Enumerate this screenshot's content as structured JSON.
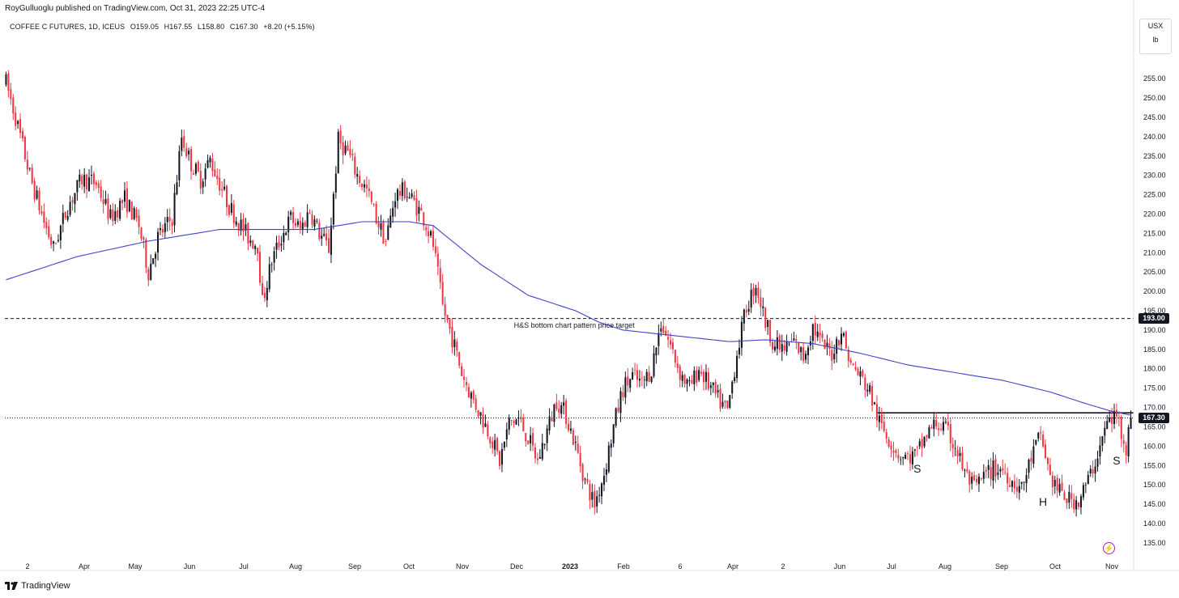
{
  "header": {
    "publisher": "RoyGulluoglu published on TradingView.com, Oct 31, 2023 22:25 UTC-4"
  },
  "legend": {
    "symbol": "COFFEE C FUTURES, 1D, ICEUS",
    "open": "O159.05",
    "high": "H167.55",
    "low": "L158.80",
    "close": "C167.30",
    "change": "+8.20 (+5.15%)"
  },
  "units": {
    "currency": "USX",
    "per": "lb"
  },
  "footer": {
    "brand": "TradingView"
  },
  "colors": {
    "up": "#131722",
    "down": "#f23645",
    "ma": "#3f44c9",
    "label_bg": "#131722"
  },
  "chart_data": {
    "type": "candlestick",
    "title": "COFFEE C FUTURES, 1D, ICEUS",
    "ylim": [
      131,
      259
    ],
    "y_ticks": [
      "255.00",
      "250.00",
      "245.00",
      "240.00",
      "235.00",
      "230.00",
      "225.00",
      "220.00",
      "215.00",
      "210.00",
      "205.00",
      "200.00",
      "195.00",
      "190.00",
      "185.00",
      "180.00",
      "175.00",
      "170.00",
      "165.00",
      "160.00",
      "155.00",
      "150.00",
      "145.00",
      "140.00",
      "135.00"
    ],
    "x_ticks": [
      "2",
      "Apr",
      "May",
      "Jun",
      "Jul",
      "Aug",
      "Sep",
      "Oct",
      "Nov",
      "Dec",
      "2023",
      "Feb",
      "6",
      "Apr",
      "2",
      "Jun",
      "Jul",
      "Aug",
      "Sep",
      "Oct",
      "Nov"
    ],
    "price_path": [
      [
        0,
        254
      ],
      [
        4,
        245
      ],
      [
        10,
        230
      ],
      [
        16,
        218
      ],
      [
        20,
        211
      ],
      [
        26,
        222
      ],
      [
        32,
        229
      ],
      [
        38,
        228
      ],
      [
        44,
        219
      ],
      [
        50,
        224
      ],
      [
        56,
        217
      ],
      [
        60,
        205
      ],
      [
        64,
        214
      ],
      [
        70,
        219
      ],
      [
        74,
        240
      ],
      [
        78,
        233
      ],
      [
        82,
        229
      ],
      [
        86,
        234
      ],
      [
        90,
        228
      ],
      [
        94,
        222
      ],
      [
        98,
        218
      ],
      [
        102,
        214
      ],
      [
        106,
        212
      ],
      [
        108,
        197
      ],
      [
        112,
        208
      ],
      [
        116,
        214
      ],
      [
        120,
        219
      ],
      [
        124,
        216
      ],
      [
        128,
        221
      ],
      [
        132,
        215
      ],
      [
        136,
        211
      ],
      [
        140,
        239
      ],
      [
        144,
        236
      ],
      [
        148,
        230
      ],
      [
        152,
        226
      ],
      [
        156,
        219
      ],
      [
        160,
        213
      ],
      [
        164,
        225
      ],
      [
        168,
        226
      ],
      [
        172,
        223
      ],
      [
        176,
        219
      ],
      [
        180,
        212
      ],
      [
        184,
        196
      ],
      [
        188,
        188
      ],
      [
        192,
        179
      ],
      [
        196,
        173
      ],
      [
        200,
        168
      ],
      [
        204,
        163
      ],
      [
        208,
        156
      ],
      [
        212,
        166
      ],
      [
        216,
        167
      ],
      [
        220,
        162
      ],
      [
        224,
        156
      ],
      [
        228,
        164
      ],
      [
        232,
        172
      ],
      [
        236,
        168
      ],
      [
        240,
        160
      ],
      [
        244,
        151
      ],
      [
        248,
        145
      ],
      [
        252,
        153
      ],
      [
        256,
        165
      ],
      [
        260,
        175
      ],
      [
        264,
        178
      ],
      [
        268,
        176
      ],
      [
        272,
        180
      ],
      [
        276,
        192
      ],
      [
        280,
        186
      ],
      [
        284,
        179
      ],
      [
        288,
        175
      ],
      [
        292,
        180
      ],
      [
        296,
        176
      ],
      [
        300,
        172
      ],
      [
        304,
        169
      ],
      [
        308,
        184
      ],
      [
        312,
        196
      ],
      [
        316,
        202
      ],
      [
        320,
        192
      ],
      [
        324,
        186
      ],
      [
        328,
        185
      ],
      [
        332,
        187
      ],
      [
        336,
        183
      ],
      [
        340,
        191
      ],
      [
        344,
        186
      ],
      [
        348,
        184
      ],
      [
        352,
        190
      ],
      [
        356,
        181
      ],
      [
        360,
        178
      ],
      [
        364,
        174
      ],
      [
        368,
        166
      ],
      [
        372,
        162
      ],
      [
        376,
        158
      ],
      [
        380,
        157
      ],
      [
        384,
        158
      ],
      [
        388,
        163
      ],
      [
        392,
        166
      ],
      [
        396,
        164
      ],
      [
        400,
        160
      ],
      [
        404,
        153
      ],
      [
        408,
        149
      ],
      [
        412,
        152
      ],
      [
        416,
        154
      ],
      [
        420,
        154
      ],
      [
        424,
        151
      ],
      [
        428,
        149
      ],
      [
        432,
        157
      ],
      [
        436,
        163
      ],
      [
        440,
        152
      ],
      [
        444,
        148
      ],
      [
        448,
        146
      ],
      [
        452,
        146
      ],
      [
        456,
        151
      ],
      [
        460,
        158
      ],
      [
        464,
        166
      ],
      [
        468,
        168
      ],
      [
        472,
        160
      ],
      [
        474,
        167.3
      ]
    ],
    "series": [
      {
        "name": "",
        "kind": "moving_average",
        "points": [
          [
            0,
            203
          ],
          [
            30,
            209
          ],
          [
            60,
            213
          ],
          [
            90,
            216
          ],
          [
            110,
            216
          ],
          [
            130,
            216
          ],
          [
            150,
            218
          ],
          [
            170,
            218
          ],
          [
            180,
            217
          ],
          [
            200,
            207
          ],
          [
            220,
            199
          ],
          [
            240,
            195
          ],
          [
            250,
            192
          ],
          [
            260,
            190
          ],
          [
            275,
            189
          ],
          [
            290,
            188
          ],
          [
            305,
            187
          ],
          [
            320,
            187.5
          ],
          [
            340,
            186.5
          ],
          [
            360,
            184
          ],
          [
            380,
            181
          ],
          [
            400,
            179
          ],
          [
            420,
            177
          ],
          [
            440,
            174
          ],
          [
            455,
            171
          ],
          [
            466,
            169
          ],
          [
            474,
            168
          ]
        ]
      }
    ],
    "levels": [
      {
        "price": 193.0,
        "style": "dashed",
        "label": "193.00"
      },
      {
        "price": 167.3,
        "style": "dotted",
        "label": "167.30"
      },
      {
        "price": 168.6,
        "style": "solid",
        "from_bar": 367,
        "to_bar": 474,
        "label": ""
      }
    ],
    "annotations": [
      {
        "text": "H&S bottom chart pattern price target",
        "bar": 214,
        "price": 191.2
      },
      {
        "text": "S",
        "bar": 384,
        "price": 154.2
      },
      {
        "text": "H",
        "bar": 437,
        "price": 145.6
      },
      {
        "text": "S",
        "bar": 468,
        "price": 156.3
      }
    ]
  }
}
